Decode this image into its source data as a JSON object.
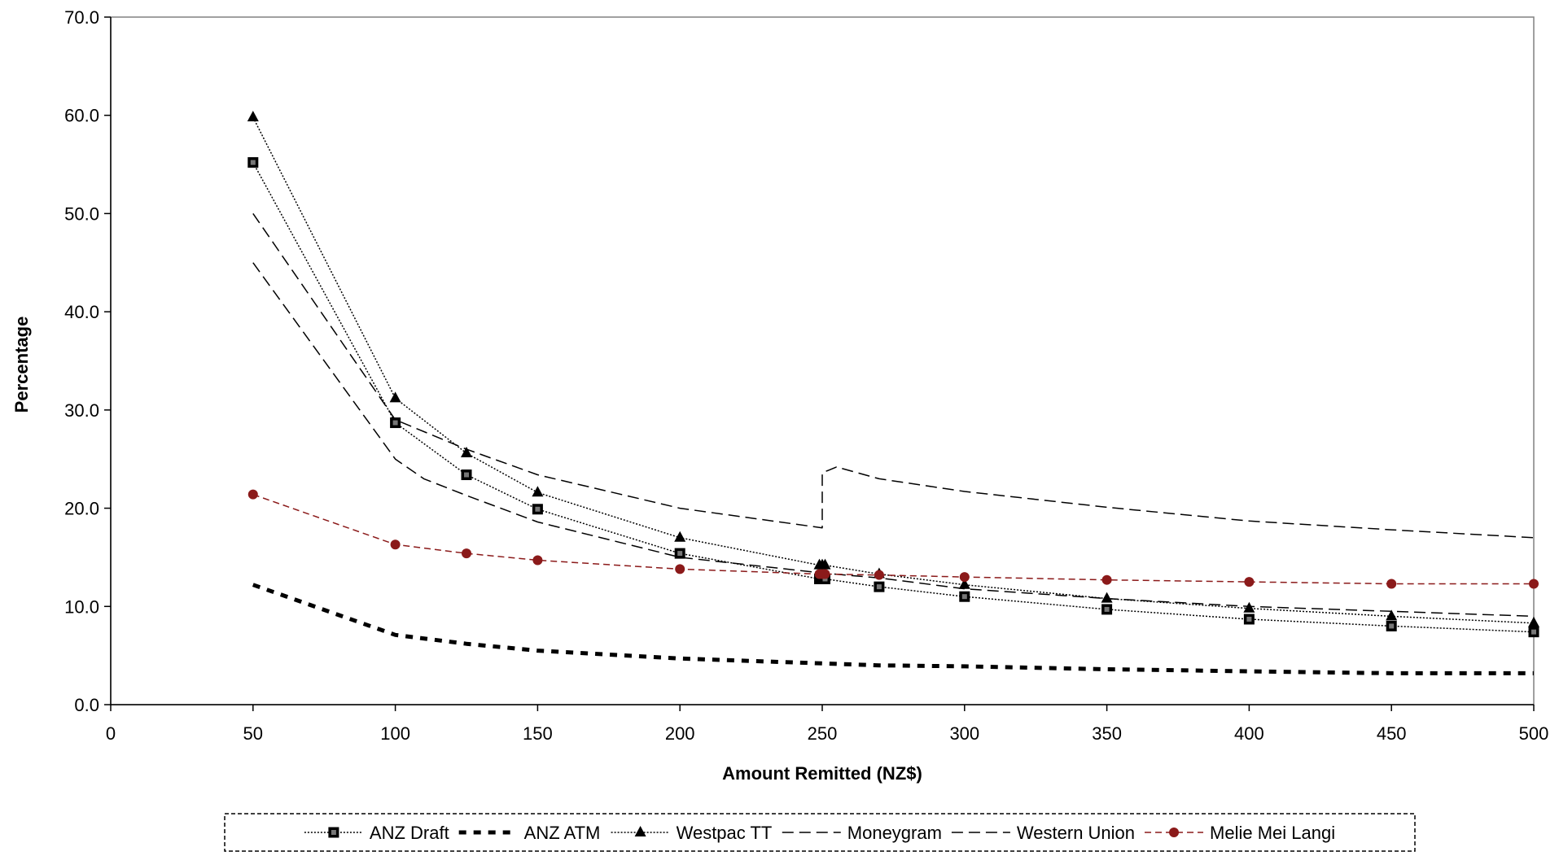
{
  "chart_data": {
    "type": "line",
    "title": "",
    "xlabel": "Amount Remitted (NZ$)",
    "ylabel": "Percentage",
    "xlim": [
      0,
      500
    ],
    "ylim": [
      0,
      70
    ],
    "x_ticks": [
      "0",
      "50",
      "100",
      "150",
      "200",
      "250",
      "300",
      "350",
      "400",
      "450",
      "500"
    ],
    "y_ticks": [
      "0.0",
      "10.0",
      "20.0",
      "30.0",
      "40.0",
      "50.0",
      "60.0",
      "70.0"
    ],
    "grid": false,
    "legend_position": "bottom",
    "series": [
      {
        "name": "ANZ Draft",
        "color": "#000000",
        "style": "dotted-thin",
        "marker": "square",
        "points": [
          [
            50,
            55.2
          ],
          [
            100,
            28.7
          ],
          [
            125,
            23.4
          ],
          [
            150,
            19.9
          ],
          [
            200,
            15.4
          ],
          [
            249,
            12.8
          ],
          [
            250,
            12.8
          ],
          [
            251,
            12.8
          ],
          [
            270,
            12.0
          ],
          [
            300,
            11.0
          ],
          [
            350,
            9.7
          ],
          [
            400,
            8.7
          ],
          [
            450,
            8.0
          ],
          [
            500,
            7.4
          ]
        ]
      },
      {
        "name": "ANZ ATM",
        "color": "#000000",
        "style": "dashed-thick",
        "marker": "none",
        "points": [
          [
            50,
            12.2
          ],
          [
            100,
            7.1
          ],
          [
            125,
            6.2
          ],
          [
            150,
            5.5
          ],
          [
            200,
            4.7
          ],
          [
            250,
            4.2
          ],
          [
            270,
            4.0
          ],
          [
            300,
            3.9
          ],
          [
            350,
            3.6
          ],
          [
            400,
            3.4
          ],
          [
            450,
            3.2
          ],
          [
            500,
            3.2
          ]
        ]
      },
      {
        "name": "Westpac TT",
        "color": "#000000",
        "style": "dotted-thin",
        "marker": "triangle",
        "points": [
          [
            50,
            59.8
          ],
          [
            100,
            31.2
          ],
          [
            125,
            25.6
          ],
          [
            150,
            21.6
          ],
          [
            200,
            17.0
          ],
          [
            249,
            14.2
          ],
          [
            250,
            14.2
          ],
          [
            251,
            14.2
          ],
          [
            270,
            13.3
          ],
          [
            300,
            12.2
          ],
          [
            350,
            10.8
          ],
          [
            400,
            9.8
          ],
          [
            450,
            9.0
          ],
          [
            500,
            8.3
          ]
        ]
      },
      {
        "name": "Moneygram",
        "color": "#000000",
        "style": "dashed-long",
        "marker": "none",
        "points": [
          [
            50,
            45.0
          ],
          [
            100,
            25.0
          ],
          [
            110,
            23.0
          ],
          [
            125,
            21.3
          ],
          [
            150,
            18.6
          ],
          [
            200,
            15.0
          ],
          [
            250,
            13.4
          ],
          [
            270,
            12.9
          ],
          [
            300,
            11.8
          ],
          [
            350,
            10.8
          ],
          [
            400,
            10.0
          ],
          [
            450,
            9.5
          ],
          [
            500,
            9.0
          ]
        ]
      },
      {
        "name": "Western Union",
        "color": "#000000",
        "style": "dashed-long",
        "marker": "none",
        "points": [
          [
            50,
            50.0
          ],
          [
            100,
            29.0
          ],
          [
            125,
            26.0
          ],
          [
            150,
            23.4
          ],
          [
            200,
            20.0
          ],
          [
            250,
            18.0
          ],
          [
            250,
            23.6
          ],
          [
            255,
            24.2
          ],
          [
            270,
            23.0
          ],
          [
            300,
            21.7
          ],
          [
            350,
            20.1
          ],
          [
            400,
            18.7
          ],
          [
            450,
            17.8
          ],
          [
            500,
            17.0
          ]
        ]
      },
      {
        "name": "Melie Mei Langi",
        "color": "#8b1a1a",
        "style": "dashed-short",
        "marker": "circle",
        "points": [
          [
            50,
            21.4
          ],
          [
            100,
            16.3
          ],
          [
            125,
            15.4
          ],
          [
            150,
            14.7
          ],
          [
            200,
            13.8
          ],
          [
            249,
            13.3
          ],
          [
            250,
            13.3
          ],
          [
            251,
            13.3
          ],
          [
            270,
            13.2
          ],
          [
            300,
            13.0
          ],
          [
            350,
            12.7
          ],
          [
            400,
            12.5
          ],
          [
            450,
            12.3
          ],
          [
            500,
            12.3
          ]
        ]
      }
    ]
  }
}
